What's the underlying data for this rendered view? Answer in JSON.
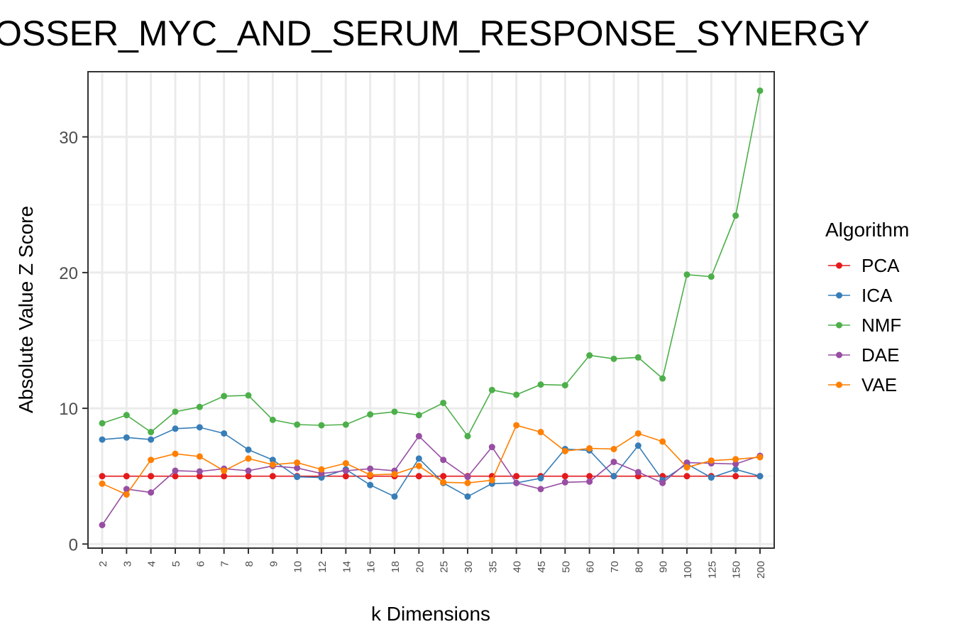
{
  "chart_data": {
    "type": "line",
    "title": "OSSER_MYC_AND_SERUM_RESPONSE_SYNERGY",
    "xlabel": "k Dimensions",
    "ylabel": "Absolute Value Z Score",
    "categories": [
      "2",
      "3",
      "4",
      "5",
      "6",
      "7",
      "8",
      "9",
      "10",
      "12",
      "14",
      "16",
      "18",
      "20",
      "25",
      "30",
      "35",
      "40",
      "45",
      "50",
      "60",
      "70",
      "80",
      "90",
      "100",
      "125",
      "150",
      "200"
    ],
    "ylim": [
      -0.3,
      34.8
    ],
    "yticks": [
      0,
      10,
      20,
      30
    ],
    "grid": true,
    "legend": {
      "title": "Algorithm",
      "position": "right"
    },
    "series": [
      {
        "name": "PCA",
        "color": "#e41a1c",
        "values": [
          5.0,
          5.0,
          5.0,
          5.0,
          5.0,
          5.0,
          5.0,
          5.0,
          5.0,
          5.0,
          5.0,
          5.0,
          5.0,
          5.0,
          5.0,
          5.0,
          5.0,
          5.0,
          5.0,
          5.0,
          5.0,
          5.0,
          5.0,
          5.0,
          5.0,
          5.0,
          5.0,
          5.0
        ]
      },
      {
        "name": "ICA",
        "color": "#377eb8",
        "values": [
          7.7,
          7.85,
          7.7,
          8.5,
          8.6,
          8.15,
          6.95,
          6.2,
          4.95,
          4.9,
          5.5,
          4.35,
          3.5,
          6.3,
          4.5,
          3.5,
          4.45,
          4.5,
          4.85,
          7.0,
          6.9,
          5.0,
          7.25,
          4.7,
          5.9,
          4.9,
          5.5,
          5.0
        ]
      },
      {
        "name": "NMF",
        "color": "#4daf4a",
        "values": [
          8.9,
          9.5,
          8.25,
          9.75,
          10.1,
          10.9,
          10.95,
          9.15,
          8.8,
          8.75,
          8.8,
          9.55,
          9.75,
          9.5,
          10.4,
          7.95,
          11.35,
          11.0,
          11.75,
          11.7,
          13.9,
          13.65,
          13.75,
          12.2,
          19.85,
          19.7,
          24.2,
          33.4
        ]
      },
      {
        "name": "DAE",
        "color": "#984ea3",
        "values": [
          1.4,
          4.05,
          3.8,
          5.4,
          5.35,
          5.55,
          5.4,
          5.75,
          5.6,
          5.2,
          5.4,
          5.55,
          5.4,
          7.95,
          6.2,
          4.95,
          7.15,
          4.5,
          4.05,
          4.55,
          4.6,
          6.05,
          5.3,
          4.5,
          6.0,
          5.95,
          5.9,
          6.5
        ]
      },
      {
        "name": "VAE",
        "color": "#ff7f00",
        "values": [
          4.45,
          3.65,
          6.2,
          6.65,
          6.45,
          5.4,
          6.3,
          5.85,
          6.0,
          5.5,
          5.95,
          5.1,
          5.15,
          5.75,
          4.55,
          4.5,
          4.7,
          8.75,
          8.25,
          6.85,
          7.05,
          7.0,
          8.15,
          7.55,
          5.65,
          6.15,
          6.25,
          6.4
        ]
      }
    ]
  }
}
